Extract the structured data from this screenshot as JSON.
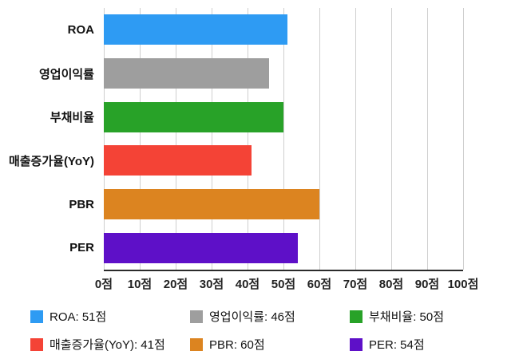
{
  "chart_data": {
    "type": "bar",
    "orientation": "horizontal",
    "title": "",
    "categories": [
      "ROA",
      "영업이익률",
      "부채비율",
      "매출증가율(YoY)",
      "PBR",
      "PER"
    ],
    "values": [
      51,
      46,
      50,
      41,
      60,
      54
    ],
    "unit": "점",
    "colors": [
      "#2E9BF3",
      "#9E9E9E",
      "#28A228",
      "#F44336",
      "#DC8420",
      "#5E10C8"
    ],
    "xlim": [
      0,
      100
    ],
    "x_ticks": [
      0,
      10,
      20,
      30,
      40,
      50,
      60,
      70,
      80,
      90,
      100
    ],
    "x_tick_labels": [
      "0점",
      "10점",
      "20점",
      "30점",
      "40점",
      "50점",
      "60점",
      "70점",
      "80점",
      "90점",
      "100점"
    ],
    "grid": true,
    "gridline_color": "#cfcfcf",
    "axis_color": "#2b2b2b",
    "legend_position": "bottom",
    "legend_labels": [
      "ROA: 51점",
      "영업이익률: 46점",
      "부채비율: 50점",
      "매출증가율(YoY): 41점",
      "PBR: 60점",
      "PER: 54점"
    ]
  }
}
